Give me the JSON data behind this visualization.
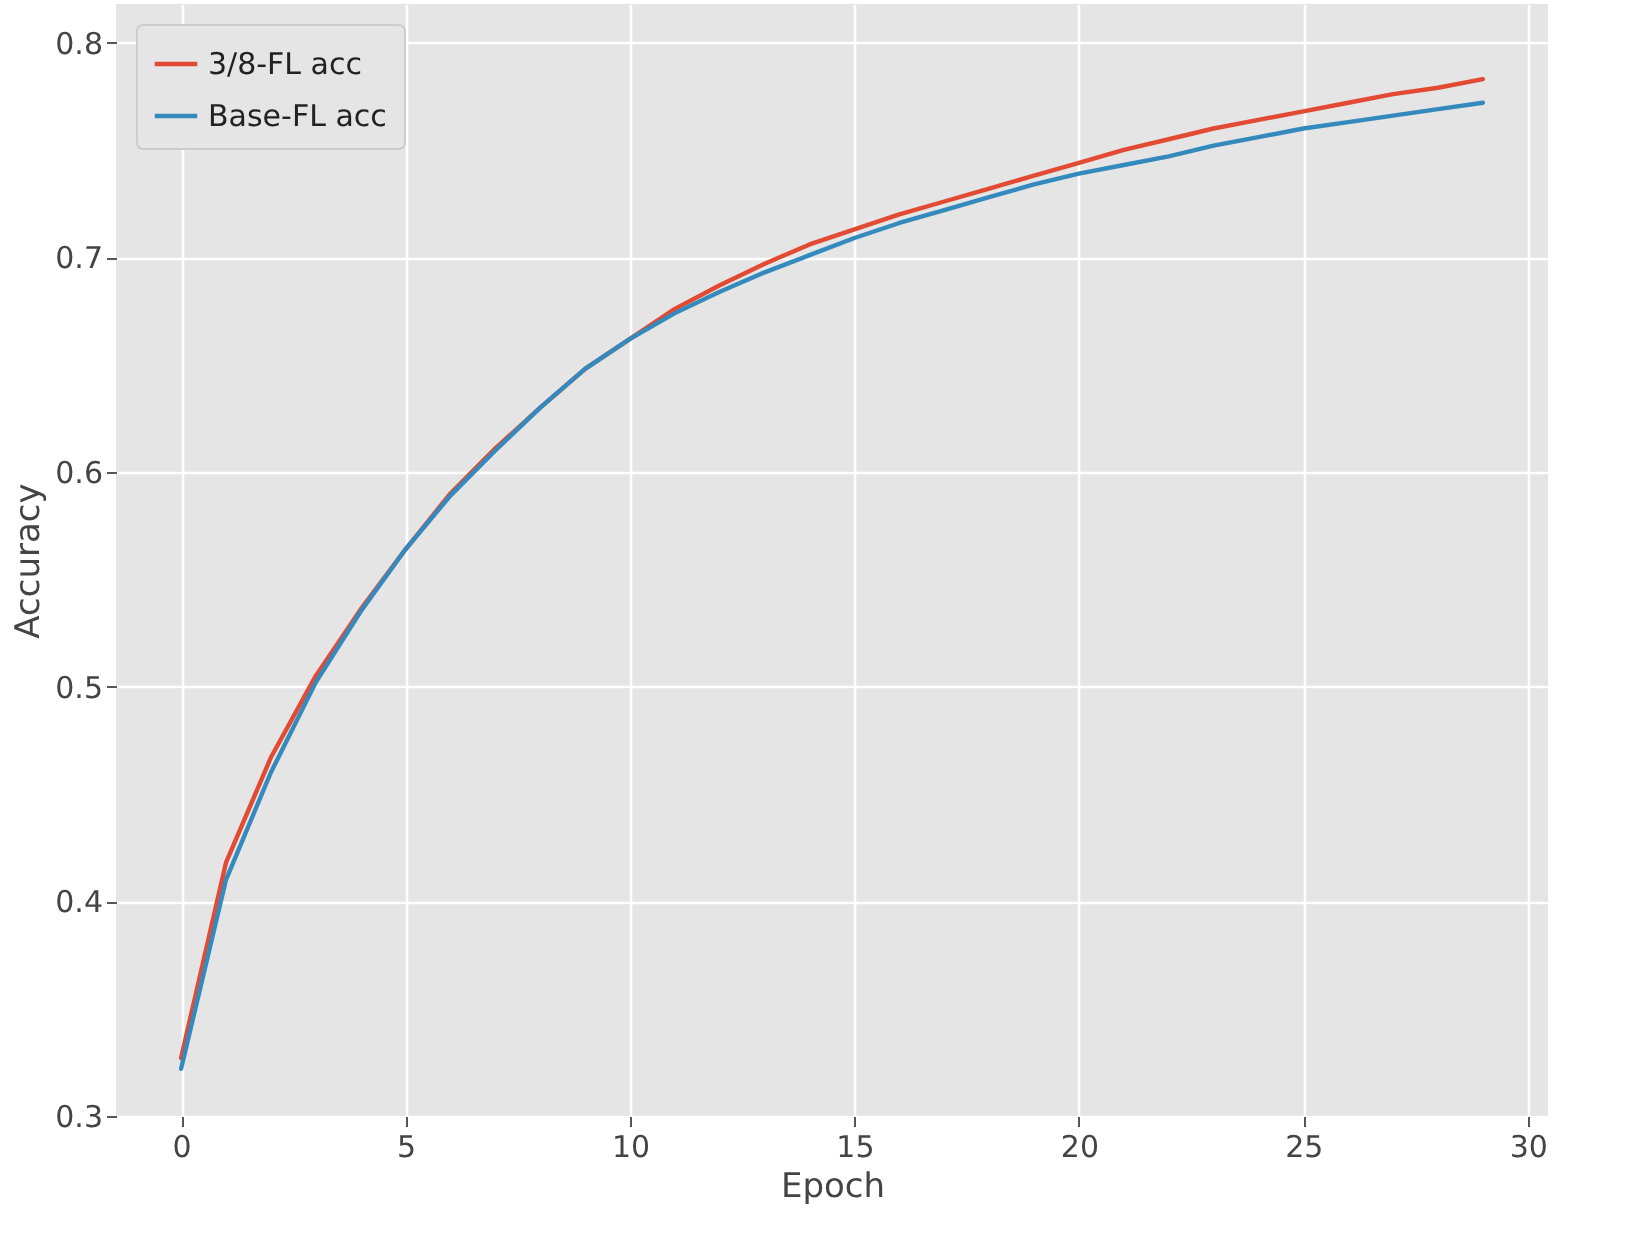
{
  "chart_data": {
    "type": "line",
    "xlabel": "Epoch",
    "ylabel": "Accuracy",
    "x": [
      0,
      1,
      2,
      3,
      4,
      5,
      6,
      7,
      8,
      9,
      10,
      11,
      12,
      13,
      14,
      15,
      16,
      17,
      18,
      19,
      20,
      21,
      22,
      23,
      24,
      25,
      26,
      27,
      28,
      29
    ],
    "series": [
      {
        "name": "3/8-FL acc",
        "color": "#e24a33",
        "values": [
          0.327,
          0.418,
          0.467,
          0.505,
          0.536,
          0.564,
          0.59,
          0.611,
          0.63,
          0.648,
          0.662,
          0.676,
          0.687,
          0.697,
          0.706,
          0.713,
          0.72,
          0.726,
          0.732,
          0.738,
          0.744,
          0.75,
          0.755,
          0.76,
          0.764,
          0.768,
          0.772,
          0.776,
          0.779,
          0.783
        ]
      },
      {
        "name": "Base-FL acc",
        "color": "#348abd",
        "values": [
          0.322,
          0.41,
          0.46,
          0.502,
          0.535,
          0.564,
          0.589,
          0.61,
          0.63,
          0.648,
          0.662,
          0.674,
          0.684,
          0.693,
          0.701,
          0.709,
          0.716,
          0.722,
          0.728,
          0.734,
          0.739,
          0.743,
          0.747,
          0.752,
          0.756,
          0.76,
          0.763,
          0.766,
          0.769,
          0.772
        ]
      }
    ],
    "xlim": [
      -1.45,
      30.45
    ],
    "ylim": [
      0.3,
      0.818
    ],
    "xticks": [
      0,
      5,
      10,
      15,
      20,
      25,
      30
    ],
    "yticks": [
      0.3,
      0.4,
      0.5,
      0.6,
      0.7,
      0.8
    ],
    "grid": true,
    "legend": "top left",
    "marker": "none",
    "line_style": "solid"
  }
}
